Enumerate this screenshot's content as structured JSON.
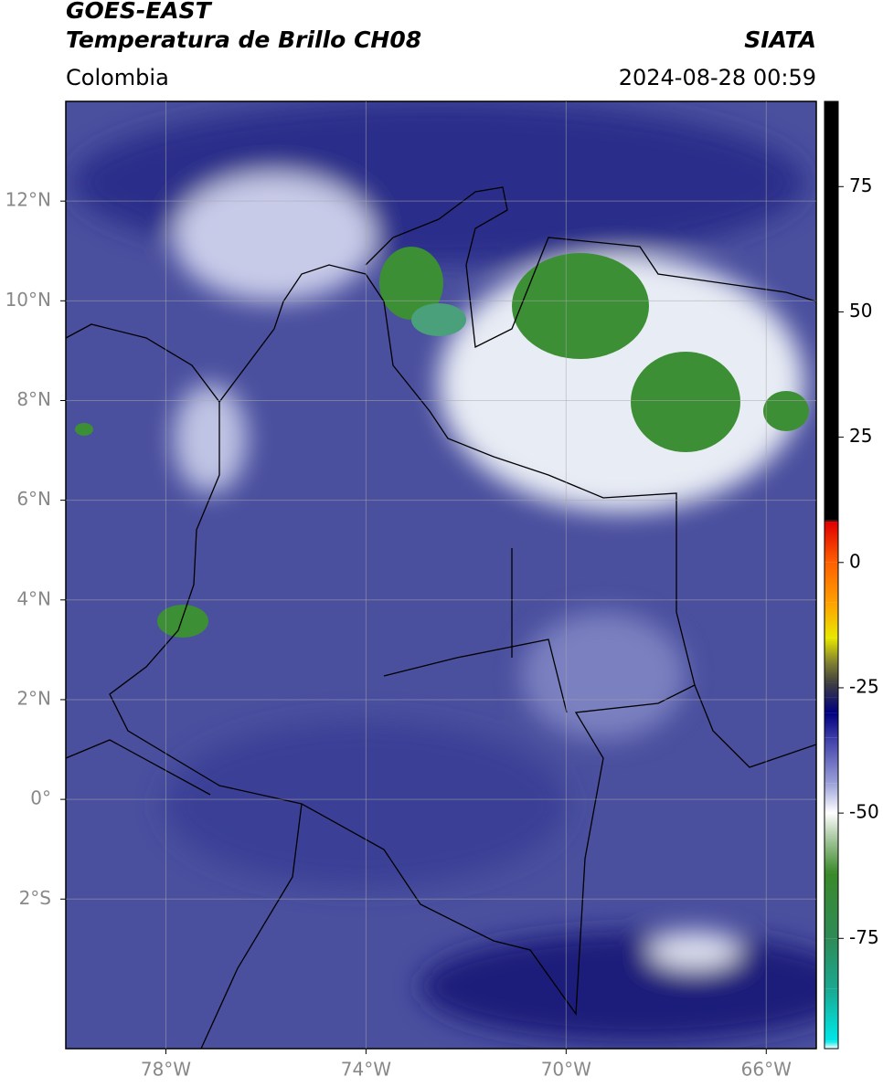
{
  "header": {
    "title": "GOES-EAST",
    "subtitle": "Temperatura de Brillo CH08",
    "source": "SIATA",
    "region": "Colombia",
    "timestamp": "2024-08-28 00:59"
  },
  "map": {
    "xlim": [
      -80,
      -65
    ],
    "ylim": [
      -5,
      14
    ],
    "xticks": [
      {
        "value": -78,
        "label": "78°W"
      },
      {
        "value": -74,
        "label": "74°W"
      },
      {
        "value": -70,
        "label": "70°W"
      },
      {
        "value": -66,
        "label": "66°W"
      }
    ],
    "yticks": [
      {
        "value": 12,
        "label": "12°N"
      },
      {
        "value": 10,
        "label": "10°N"
      },
      {
        "value": 8,
        "label": "8°N"
      },
      {
        "value": 6,
        "label": "6°N"
      },
      {
        "value": 4,
        "label": "4°N"
      },
      {
        "value": 2,
        "label": "2°N"
      },
      {
        "value": 0,
        "label": "0°"
      },
      {
        "value": -2,
        "label": "2°S"
      }
    ],
    "grid": true
  },
  "colorbar": {
    "lim": [
      -97,
      92
    ],
    "ticks": [
      75,
      50,
      25,
      0,
      -25,
      -50,
      -75
    ],
    "stops": [
      {
        "value": -97,
        "color": "#ffffff"
      },
      {
        "value": -95.5,
        "color": "#00e8e8"
      },
      {
        "value": -85,
        "color": "#1aa890"
      },
      {
        "value": -75,
        "color": "#2e8b57"
      },
      {
        "value": -62,
        "color": "#3a8a2a"
      },
      {
        "value": -55,
        "color": "#a8c8a0"
      },
      {
        "value": -50,
        "color": "#ffffff"
      },
      {
        "value": -44,
        "color": "#9aa0d8"
      },
      {
        "value": -35,
        "color": "#3c3ca8"
      },
      {
        "value": -30,
        "color": "#000080"
      },
      {
        "value": -27,
        "color": "#202060"
      },
      {
        "value": -24,
        "color": "#404040"
      },
      {
        "value": -20,
        "color": "#808030"
      },
      {
        "value": -15,
        "color": "#e8e800"
      },
      {
        "value": -8,
        "color": "#ffa000"
      },
      {
        "value": 0,
        "color": "#ff6000"
      },
      {
        "value": 8,
        "color": "#e00000"
      },
      {
        "value": 8.5,
        "color": "#000000"
      },
      {
        "value": 92,
        "color": "#000000"
      }
    ]
  }
}
